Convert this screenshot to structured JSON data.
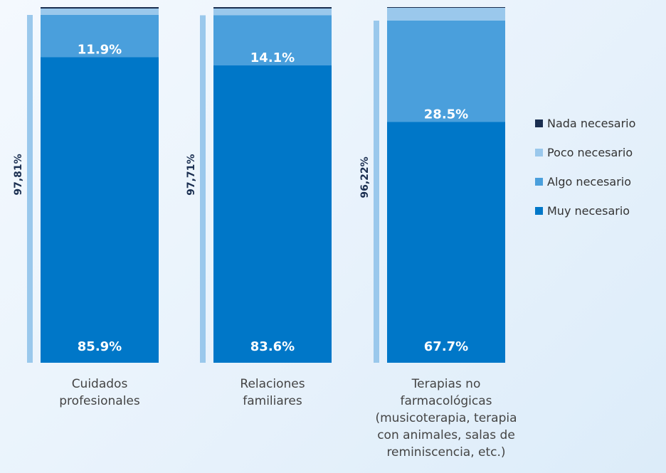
{
  "chart_data": {
    "type": "stacked_bar",
    "categories": [
      "Cuidados\nprofesionales",
      "Relaciones\nfamiliares",
      "Terapias no\nfarmacológicas\n(musicoterapia, terapia\ncon animales, salas de\nreminiscencia, etc.)"
    ],
    "series": [
      {
        "name": "Muy necesario",
        "color": "#0077c8",
        "values": [
          85.9,
          83.6,
          67.7
        ],
        "value_labels": [
          "85.9%",
          "83.6%",
          "67.7%"
        ]
      },
      {
        "name": "Algo necesario",
        "color": "#4a9fdc",
        "values": [
          11.9,
          14.1,
          28.5
        ],
        "value_labels": [
          "11.9%",
          "14.1%",
          "28.5%"
        ]
      },
      {
        "name": "Poco necesario",
        "color": "#9ac8ec",
        "values": [
          1.8,
          1.9,
          3.6
        ]
      },
      {
        "name": "Nada necesario",
        "color": "#1a2e50",
        "values": [
          0.4,
          0.4,
          0.2
        ]
      }
    ],
    "annotations": [
      "97,81%",
      "97,71%",
      "96,22%"
    ],
    "ylim": [
      0,
      100
    ],
    "legend": "right"
  }
}
